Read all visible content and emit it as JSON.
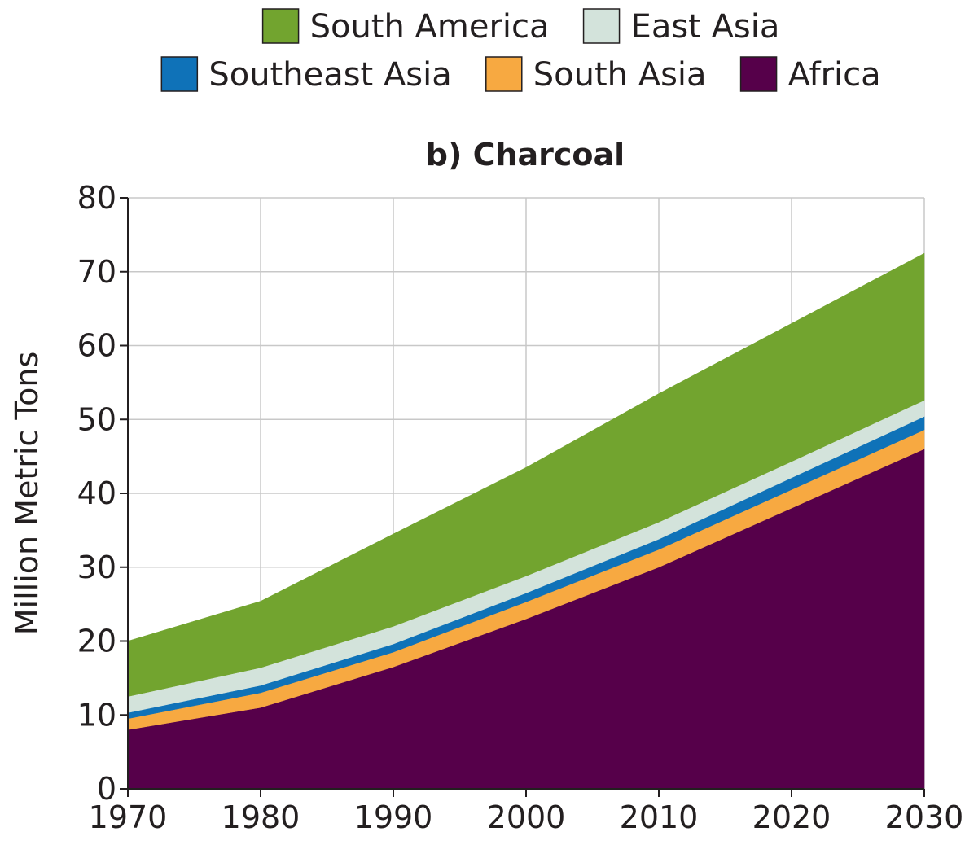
{
  "chart_data": {
    "type": "area",
    "stacked": true,
    "title": "b) Charcoal",
    "xlabel": "",
    "ylabel": "Million Metric Tons",
    "x": [
      1970,
      1980,
      1990,
      2000,
      2010,
      2020,
      2030
    ],
    "xlim": [
      1970,
      2030
    ],
    "ylim": [
      0,
      80
    ],
    "xticks": [
      1970,
      1980,
      1990,
      2000,
      2010,
      2020,
      2030
    ],
    "yticks": [
      0,
      10,
      20,
      30,
      40,
      50,
      60,
      70,
      80
    ],
    "grid": true,
    "legend_position": "top",
    "series": [
      {
        "name": "Africa",
        "color": "#56004a",
        "values": [
          8.0,
          11.0,
          16.5,
          23.0,
          30.0,
          38.0,
          46.0
        ]
      },
      {
        "name": "South Asia",
        "color": "#f7a941",
        "values": [
          1.5,
          2.0,
          2.0,
          2.3,
          2.4,
          2.5,
          2.6
        ]
      },
      {
        "name": "Southeast Asia",
        "color": "#0f72b8",
        "values": [
          0.8,
          1.0,
          1.1,
          1.2,
          1.4,
          1.6,
          1.8
        ]
      },
      {
        "name": "East Asia",
        "color": "#d3e3db",
        "values": [
          2.2,
          2.4,
          2.4,
          2.3,
          2.3,
          2.2,
          2.2
        ]
      },
      {
        "name": "South America",
        "color": "#72a42f",
        "values": [
          7.5,
          9.0,
          12.5,
          14.7,
          17.4,
          18.7,
          19.9
        ]
      }
    ]
  },
  "legend": {
    "rows": [
      [
        "South America",
        "East Asia"
      ],
      [
        "Southeast Asia",
        "South Asia",
        "Africa"
      ]
    ]
  }
}
